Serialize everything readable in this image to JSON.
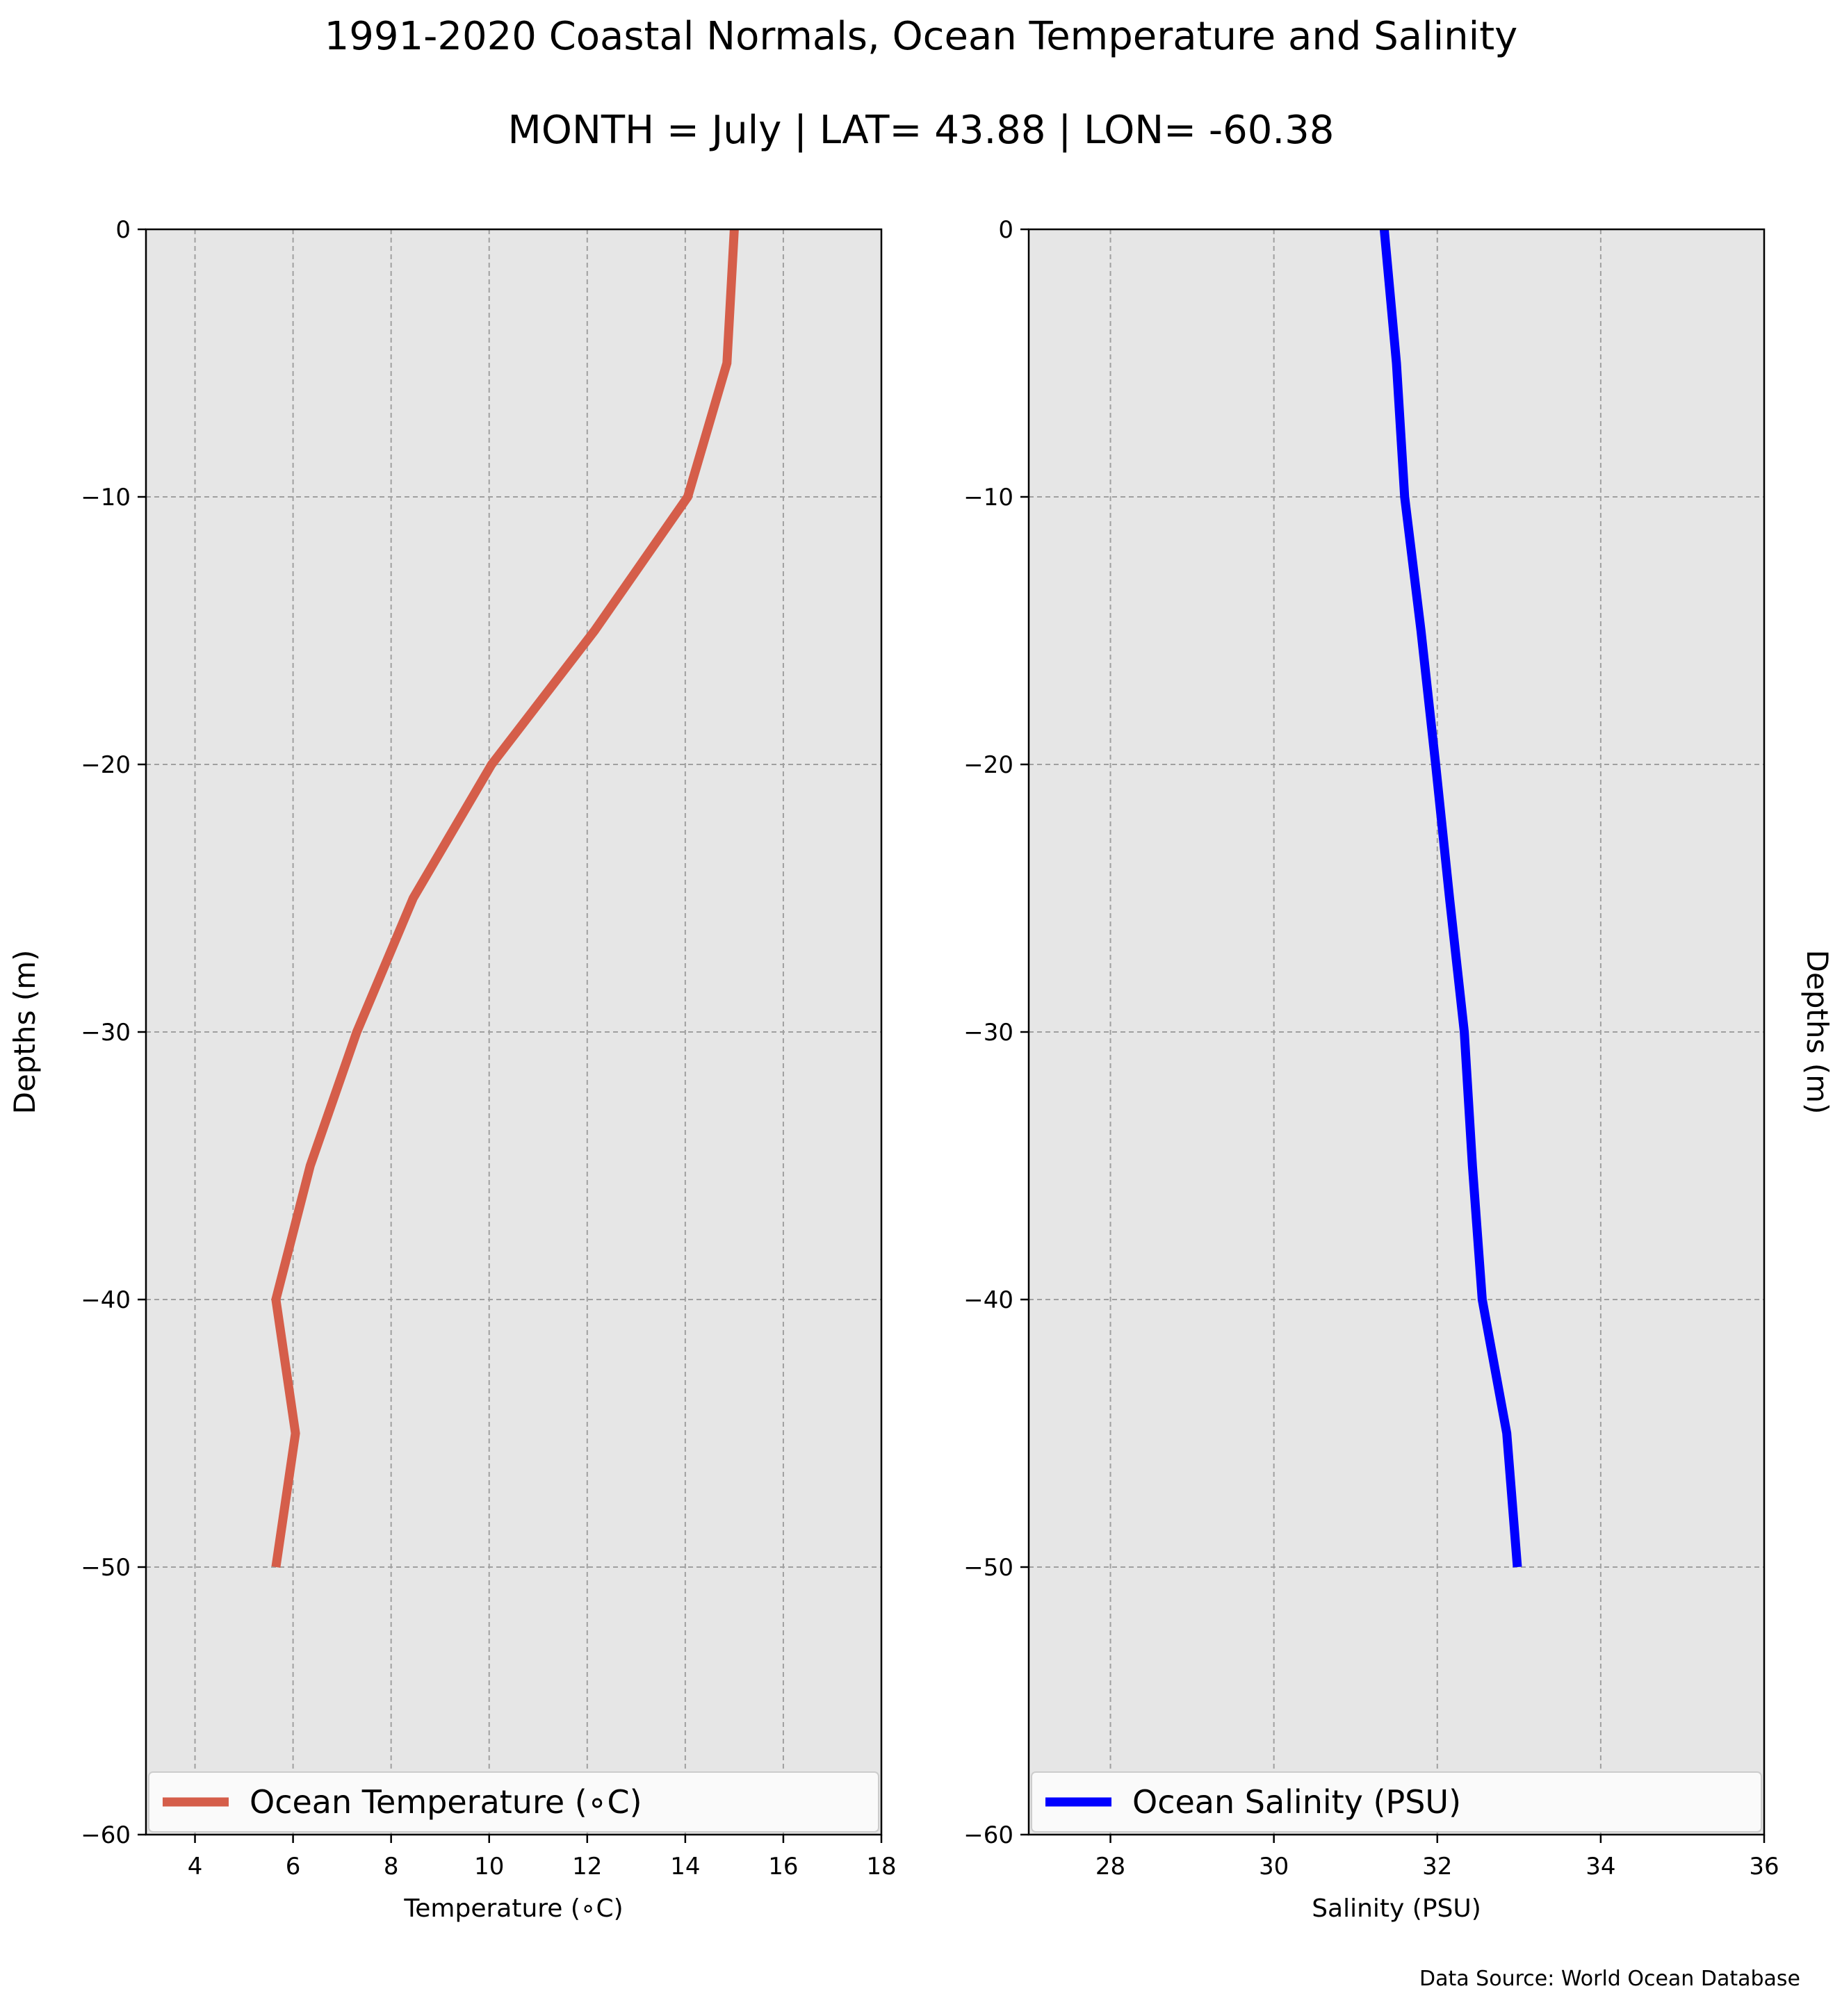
{
  "figure": {
    "title": "1991-2020 Coastal Normals, Ocean Temperature and Salinity",
    "subtitle": "MONTH = July | LAT= 43.88 | LON= -60.38",
    "source": "Data Source: World Ocean Database",
    "background": "#ffffff",
    "plot_background": "#e6e6e6"
  },
  "chart_data": [
    {
      "type": "line",
      "orientation": "vertical-profile",
      "xlabel": "Temperature (∘C)",
      "ylabel": "Depths (m)",
      "ylabel_side": "left",
      "xlim": [
        3,
        18
      ],
      "ylim": [
        -60,
        0
      ],
      "xticks": [
        4,
        6,
        8,
        10,
        12,
        14,
        16,
        18
      ],
      "yticks": [
        0,
        -10,
        -20,
        -30,
        -40,
        -50,
        -60
      ],
      "ytick_labels": [
        "0",
        "−10",
        "−20",
        "−30",
        "−40",
        "−50",
        "−60"
      ],
      "grid": true,
      "legend_position": "bottom",
      "series": [
        {
          "name": "Ocean Temperature (∘C)",
          "color": "#d55e4a",
          "x": [
            15.0,
            14.85,
            14.05,
            12.15,
            10.05,
            8.45,
            7.3,
            6.35,
            5.65,
            6.05,
            5.65
          ],
          "y": [
            0,
            -5,
            -10,
            -15,
            -20,
            -25,
            -30,
            -35,
            -40,
            -45,
            -50
          ]
        }
      ]
    },
    {
      "type": "line",
      "orientation": "vertical-profile",
      "xlabel": "Salinity (PSU)",
      "ylabel": "Depths (m)",
      "ylabel_side": "right",
      "xlim": [
        27,
        36
      ],
      "ylim": [
        -60,
        0
      ],
      "xticks": [
        28,
        30,
        32,
        34,
        36
      ],
      "yticks": [
        0,
        -10,
        -20,
        -30,
        -40,
        -50,
        -60
      ],
      "ytick_labels": [
        "0",
        "−10",
        "−20",
        "−30",
        "−40",
        "−50",
        "−60"
      ],
      "grid": true,
      "legend_position": "bottom",
      "series": [
        {
          "name": "Ocean Salinity (PSU)",
          "color": "#0000ff",
          "x": [
            31.35,
            31.5,
            31.6,
            31.8,
            31.98,
            32.15,
            32.33,
            32.43,
            32.55,
            32.85,
            32.98
          ],
          "y": [
            0,
            -5,
            -10,
            -15,
            -20,
            -25,
            -30,
            -35,
            -40,
            -45,
            -50
          ]
        }
      ]
    }
  ]
}
